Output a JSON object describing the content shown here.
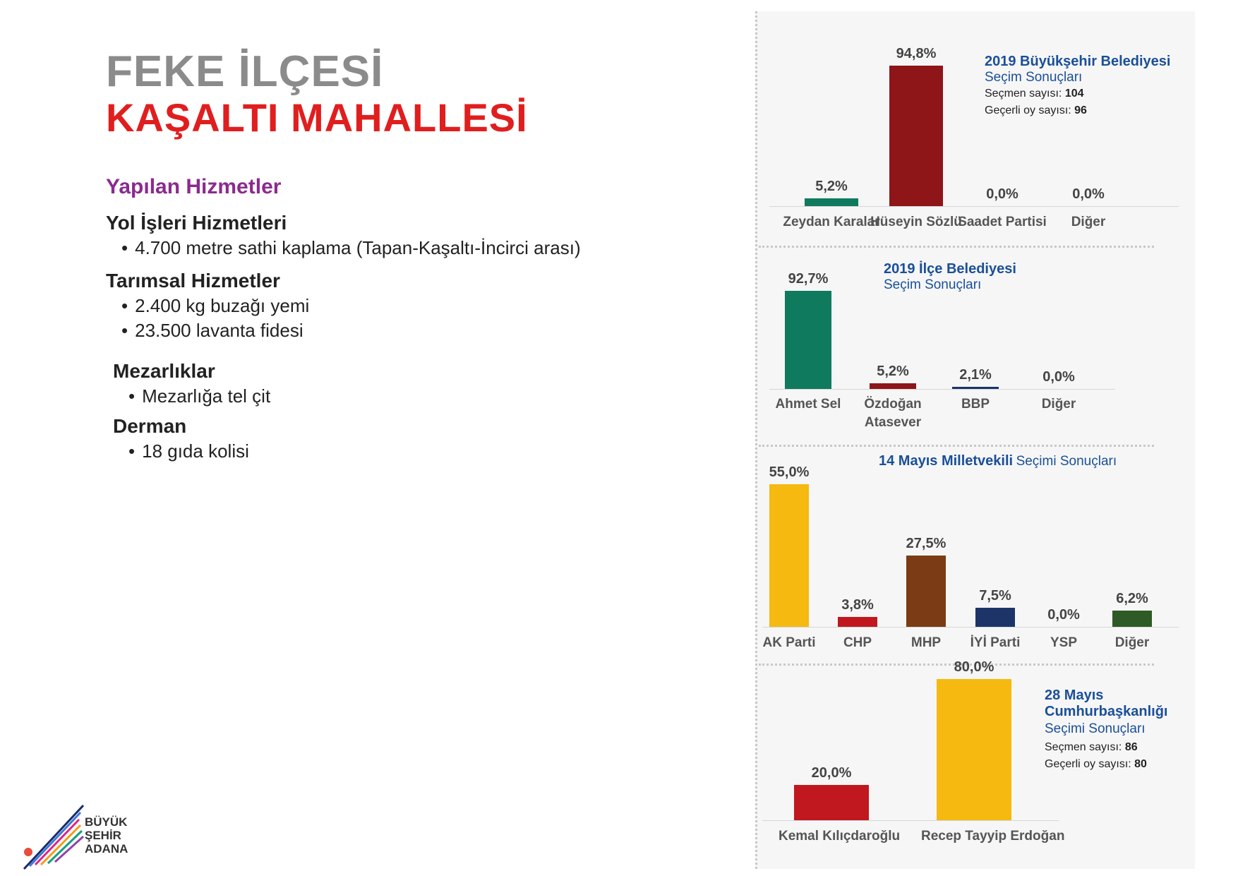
{
  "header": {
    "district": "FEKE İLÇESİ",
    "neighborhood": "KAŞALTI MAHALLESİ"
  },
  "services": {
    "title": "Yapılan Hizmetler",
    "categories": [
      {
        "name": "Yol İşleri Hizmetleri",
        "items": [
          "4.700 metre sathi kaplama (Tapan-Kaşaltı-İncirci arası)"
        ]
      },
      {
        "name": "Tarımsal Hizmetler",
        "items": [
          "2.400 kg buzağı yemi",
          "23.500 lavanta fidesi"
        ]
      },
      {
        "name": "Mezarlıklar",
        "items": [
          "Mezarlığa tel çit"
        ]
      },
      {
        "name": "Derman",
        "items": [
          "18 gıda kolisi"
        ]
      }
    ]
  },
  "chart_data": [
    {
      "type": "bar",
      "title": "2019 Büyükşehir Belediyesi",
      "subtitle": "Seçim Sonuçları",
      "info": {
        "voters_label": "Seçmen sayısı:",
        "voters": "104",
        "valid_label": "Geçerli oy sayısı:",
        "valid": "96"
      },
      "categories": [
        "Zeydan Karalar",
        "Hüseyin Sözlü",
        "Saadet Partisi",
        "Diğer"
      ],
      "values": [
        5.2,
        94.8,
        0.0,
        0.0
      ],
      "labels": [
        "5,2%",
        "94,8%",
        "0,0%",
        "0,0%"
      ],
      "colors": [
        "#0f7a5e",
        "#8e1518",
        "#0f7a5e",
        "#0f7a5e"
      ],
      "ylim": [
        0,
        100
      ]
    },
    {
      "type": "bar",
      "title": "2019 İlçe Belediyesi",
      "subtitle": "Seçim Sonuçları",
      "categories": [
        "Ahmet Sel",
        "Özdoğan Atasever",
        "BBP",
        "Diğer"
      ],
      "values": [
        92.7,
        5.2,
        2.1,
        0.0
      ],
      "labels": [
        "92,7%",
        "5,2%",
        "2,1%",
        "0,0%"
      ],
      "colors": [
        "#0f7a5e",
        "#8e1518",
        "#1c3468",
        "#1c3468"
      ],
      "ylim": [
        0,
        100
      ]
    },
    {
      "type": "bar",
      "title": "14 Mayıs Milletvekili",
      "subtitle": "Seçimi Sonuçları",
      "categories": [
        "AK Parti",
        "CHP",
        "MHP",
        "İYİ Parti",
        "YSP",
        "Diğer"
      ],
      "values": [
        55.0,
        3.8,
        27.5,
        7.5,
        0.0,
        6.2
      ],
      "labels": [
        "55,0%",
        "3,8%",
        "27,5%",
        "7,5%",
        "0,0%",
        "6,2%"
      ],
      "colors": [
        "#f5b90f",
        "#c0181e",
        "#7b3b14",
        "#1c3468",
        "#1c3468",
        "#2e5a25"
      ],
      "ylim": [
        0,
        60
      ]
    },
    {
      "type": "bar",
      "title": "28 Mayıs Cumhurbaşkanlığı",
      "subtitle": "Seçimi Sonuçları",
      "info": {
        "voters_label": "Seçmen sayısı:",
        "voters": "86",
        "valid_label": "Geçerli oy sayısı:",
        "valid": "80"
      },
      "categories": [
        "Kemal Kılıçdaroğlu",
        "Recep Tayyip Erdoğan"
      ],
      "values": [
        20.0,
        80.0
      ],
      "labels": [
        "20,0%",
        "80,0%"
      ],
      "colors": [
        "#c0181e",
        "#f5b90f"
      ],
      "ylim": [
        0,
        80
      ]
    }
  ],
  "logo": {
    "line1": "BÜYÜK",
    "line2": "ŞEHİR",
    "line3": "ADANA"
  }
}
